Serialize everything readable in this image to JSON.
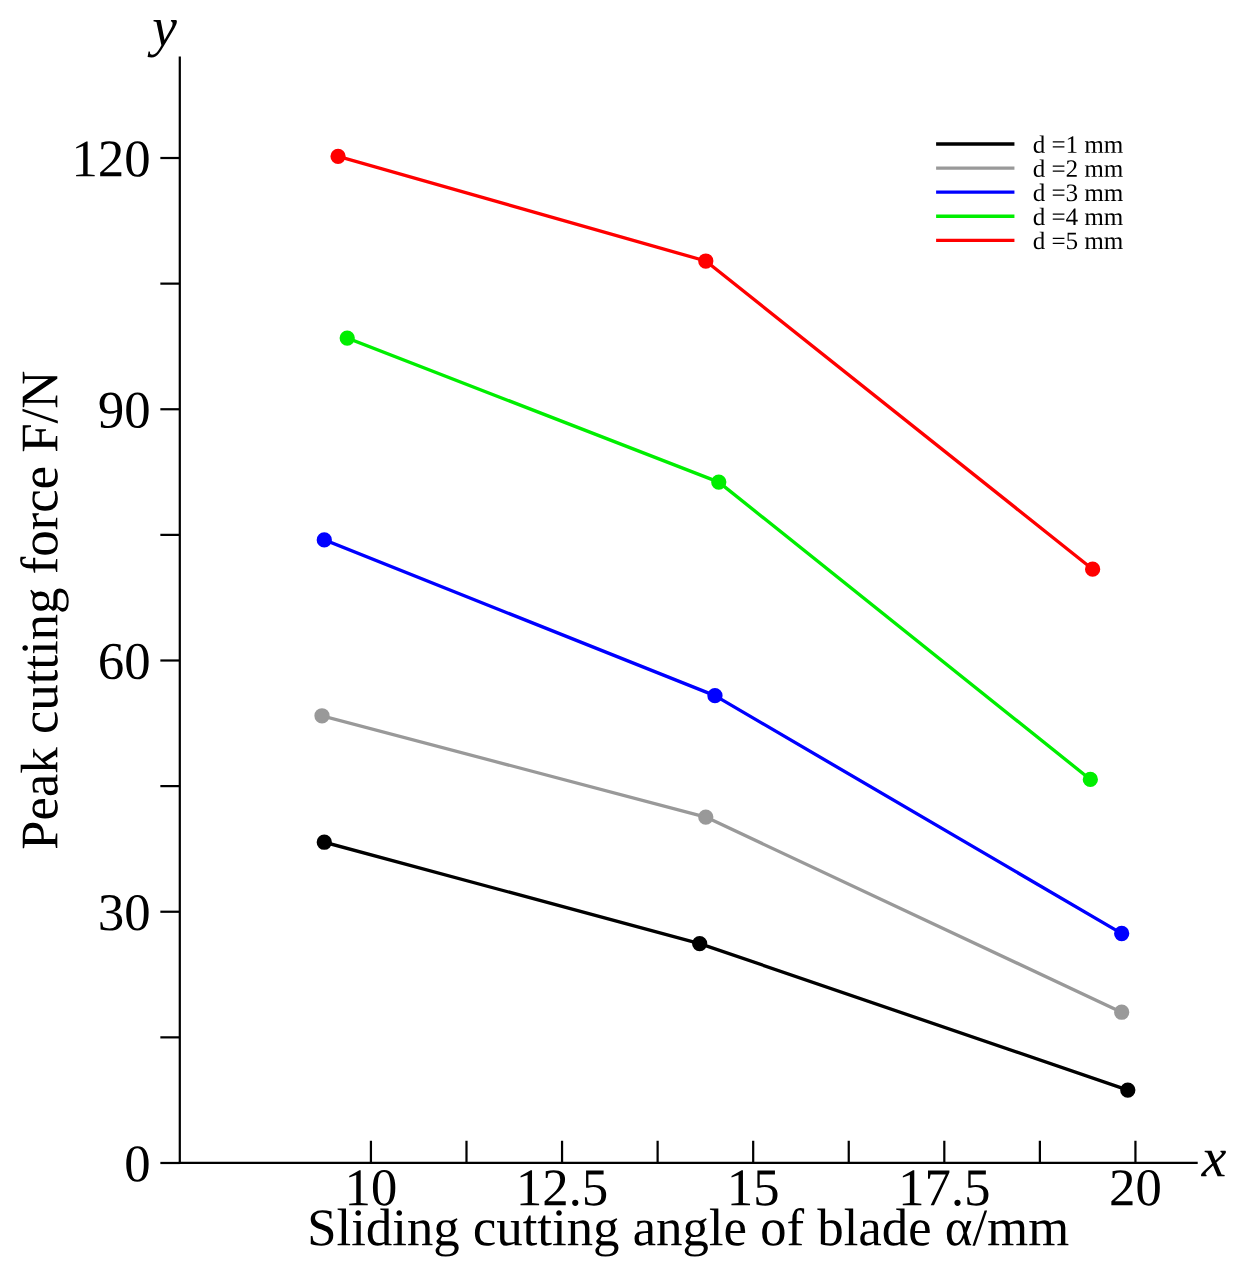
{
  "chart_data": {
    "type": "line",
    "xlabel": "Sliding cutting angle of blade α/mm",
    "ylabel": "Peak cutting force F/N",
    "annotations": [
      "x",
      "y"
    ],
    "xlim": [
      7.5,
      20.8
    ],
    "ylim": [
      0,
      132
    ],
    "xticks": [
      10,
      {
        "value": 11.25,
        "label": null
      },
      12.5,
      {
        "value": 13.75,
        "label": null
      },
      15,
      {
        "value": 16.25,
        "label": null
      },
      17.5,
      {
        "value": 18.75,
        "label": null
      },
      20
    ],
    "yticks": [
      0,
      {
        "value": 15,
        "label": null
      },
      30,
      {
        "value": 45,
        "label": null
      },
      60,
      {
        "value": 75,
        "label": null
      },
      90,
      {
        "value": 105,
        "label": null
      },
      120
    ],
    "marker": "circle",
    "grid": false,
    "legend": "top right",
    "series": [
      {
        "name": "d =1 mm",
        "color": "#000000",
        "x": [
          9.39,
          14.3,
          19.9
        ],
        "values": [
          38.3,
          26.2,
          8.7
        ]
      },
      {
        "name": "d =2 mm",
        "color": "#999999",
        "x": [
          9.36,
          14.38,
          19.82
        ],
        "values": [
          53.4,
          41.3,
          18.0
        ]
      },
      {
        "name": "d =3 mm",
        "color": "#0000ff",
        "x": [
          9.39,
          14.5,
          19.82
        ],
        "values": [
          74.4,
          55.8,
          27.4
        ]
      },
      {
        "name": "d =4 mm",
        "color": "#00ee00",
        "x": [
          9.69,
          14.55,
          19.41
        ],
        "values": [
          98.5,
          81.3,
          45.8
        ]
      },
      {
        "name": "d =5 mm",
        "color": "#ff0000",
        "x": [
          9.57,
          14.38,
          19.44
        ],
        "values": [
          120.2,
          107.7,
          70.9
        ]
      }
    ]
  }
}
